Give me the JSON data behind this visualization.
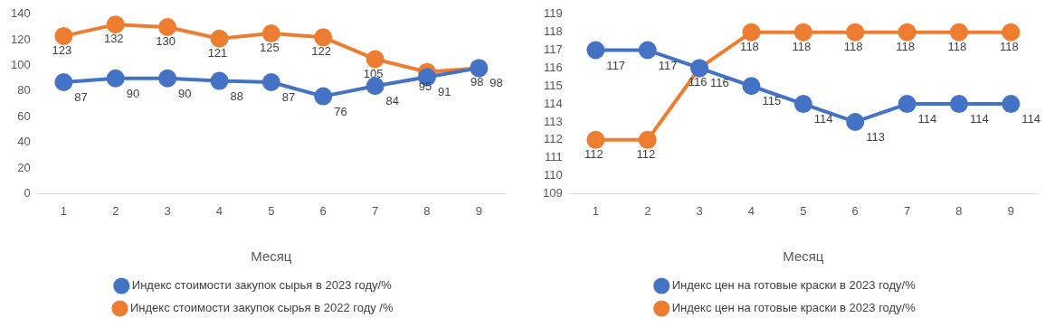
{
  "chart_data": [
    {
      "type": "line",
      "categories": [
        "1",
        "2",
        "3",
        "4",
        "5",
        "6",
        "7",
        "8",
        "9"
      ],
      "xlabel": "Месяц",
      "ylim": [
        0,
        140
      ],
      "yticks": [
        0,
        20,
        40,
        60,
        80,
        100,
        120,
        140
      ],
      "grid": false,
      "legend": "bottom",
      "marker": "circle",
      "data_labels": true,
      "series": [
        {
          "name": "Индекс стоимости закупок сырья в 2023 году/%",
          "color": "#4472c4",
          "values": [
            87,
            90,
            90,
            88,
            87,
            76,
            84,
            91,
            98
          ]
        },
        {
          "name": "Индекс стоимости закупок сырья в 2022 году /%",
          "color": "#ed7d31",
          "values": [
            123,
            132,
            130,
            121,
            125,
            122,
            105,
            95,
            98
          ]
        }
      ]
    },
    {
      "type": "line",
      "categories": [
        "1",
        "2",
        "3",
        "4",
        "5",
        "6",
        "7",
        "8",
        "9"
      ],
      "xlabel": "Месяц",
      "ylim": [
        109,
        119
      ],
      "yticks": [
        109,
        110,
        111,
        112,
        113,
        114,
        115,
        116,
        117,
        118,
        119
      ],
      "grid": false,
      "legend": "bottom",
      "marker": "circle",
      "data_labels": true,
      "series": [
        {
          "name": "Индекс цен на готовые краски в 2023 году/%",
          "color": "#4472c4",
          "values": [
            117,
            117,
            116,
            115,
            114,
            113,
            114,
            114,
            114
          ]
        },
        {
          "name": "Индекс цен на готовые краски в 2023 году/%",
          "color": "#ed7d31",
          "values": [
            112,
            112,
            116,
            118,
            118,
            118,
            118,
            118,
            118
          ]
        }
      ]
    }
  ]
}
